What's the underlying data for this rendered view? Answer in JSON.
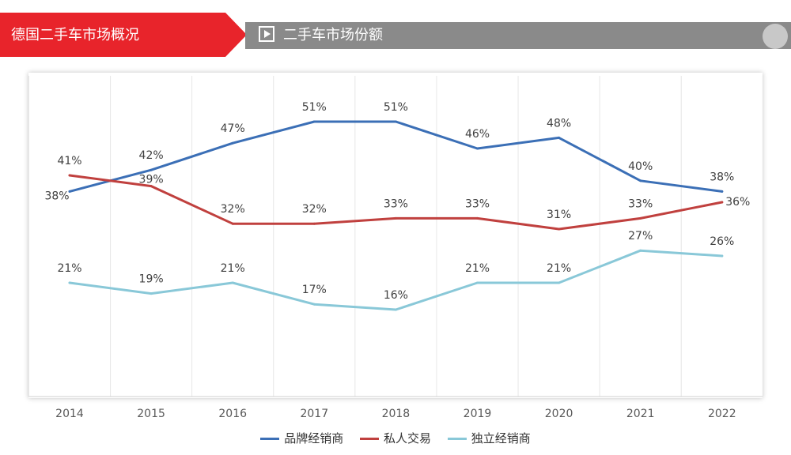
{
  "header": {
    "title": "德国二手车市场概况",
    "subtitle": "二手车市场份额",
    "play_icon": "play-icon",
    "accent_color": "#e8242b",
    "grey_color": "#8a8a8a"
  },
  "chart_data": {
    "type": "line",
    "title": "",
    "xlabel": "",
    "ylabel": "",
    "x": [
      "2014",
      "2015",
      "2016",
      "2017",
      "2018",
      "2019",
      "2020",
      "2021",
      "2022"
    ],
    "ylim": [
      0,
      60
    ],
    "grid": "vertical",
    "legend_position": "bottom",
    "series": [
      {
        "name": "品牌经销商",
        "color": "#3b6fb6",
        "values": [
          38,
          42,
          47,
          51,
          51,
          46,
          48,
          40,
          38
        ],
        "labels": [
          "38%",
          "42%",
          "47%",
          "51%",
          "51%",
          "46%",
          "48%",
          "40%",
          "38%"
        ]
      },
      {
        "name": "私人交易",
        "color": "#c0403e",
        "values": [
          41,
          39,
          32,
          32,
          33,
          33,
          31,
          33,
          36
        ],
        "labels": [
          "41%",
          "39%",
          "32%",
          "32%",
          "33%",
          "33%",
          "31%",
          "33%",
          "36%"
        ]
      },
      {
        "name": "独立经销商",
        "color": "#89c8d8",
        "values": [
          21,
          19,
          21,
          17,
          16,
          21,
          21,
          27,
          26
        ],
        "labels": [
          "21%",
          "19%",
          "21%",
          "17%",
          "16%",
          "21%",
          "21%",
          "27%",
          "26%"
        ]
      }
    ]
  }
}
